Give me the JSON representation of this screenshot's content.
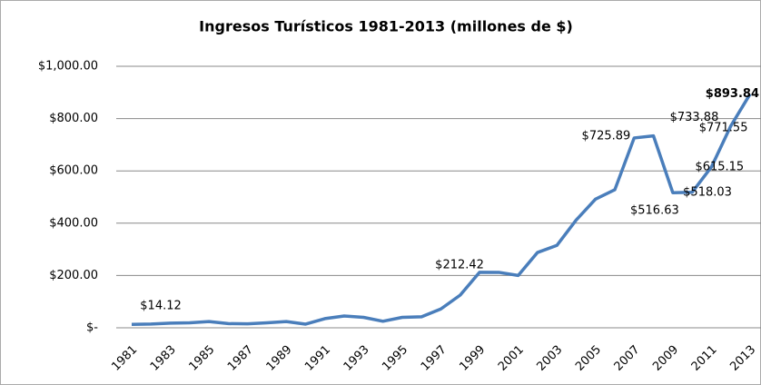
{
  "chart_data": {
    "type": "line",
    "title": "Ingresos Turísticos 1981-2013 (millones de $)",
    "categories": [
      "1981",
      null,
      "1983",
      null,
      "1985",
      null,
      "1987",
      null,
      "1989",
      null,
      "1991",
      null,
      "1993",
      null,
      "1995",
      null,
      "1997",
      null,
      "1999",
      null,
      "2001",
      null,
      "2003",
      null,
      "2005",
      null,
      "2007",
      null,
      "2009",
      null,
      "2011",
      null,
      "2013"
    ],
    "series": [
      {
        "name": "Ingresos",
        "color": "#4a7ebb",
        "values": [
          13,
          14.12,
          18,
          19,
          24,
          16,
          15,
          19,
          24,
          14,
          35,
          45,
          40,
          25,
          40,
          42,
          72,
          125,
          212.42,
          212,
          200,
          288,
          315,
          412,
          492,
          528,
          725.89,
          733.88,
          516.63,
          518.03,
          615.15,
          771.55,
          893.84
        ],
        "value_labels": [
          null,
          "$14.12",
          null,
          null,
          null,
          null,
          null,
          null,
          null,
          null,
          null,
          null,
          null,
          null,
          null,
          null,
          null,
          null,
          "$212.42",
          null,
          null,
          null,
          null,
          null,
          null,
          null,
          "$725.89",
          "$733.88",
          "$516.63",
          "$518.03",
          "$615.15",
          "$771.55",
          "$893.84"
        ]
      }
    ],
    "ylim": [
      0,
      1000
    ],
    "yticks": [
      {
        "value": 0,
        "label": "$-"
      },
      {
        "value": 200,
        "label": "$200.00"
      },
      {
        "value": 400,
        "label": "$400.00"
      },
      {
        "value": 600,
        "label": "$600.00"
      },
      {
        "value": 800,
        "label": "$800.00"
      },
      {
        "value": 1000,
        "label": "$1,000.00"
      }
    ],
    "grid": true
  }
}
